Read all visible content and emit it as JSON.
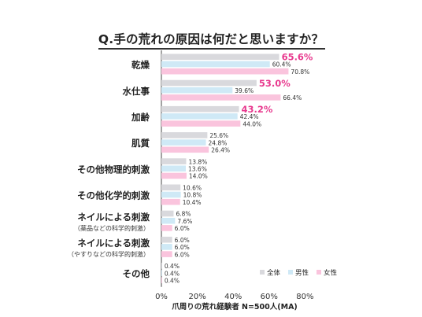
{
  "title": "Q.手の荒れの原因は何だと思いますか？",
  "colors": {
    "all": "#d9d9dd",
    "male": "#cfe9f6",
    "female": "#fac4dd",
    "highlight": "#e8398e",
    "text": "#333333"
  },
  "chart_data": {
    "type": "bar",
    "orientation": "horizontal",
    "title": "Q.手の荒れの原因は何だと思いますか？",
    "xlabel": "爪周りの荒れ経験者 N=500人(MA)",
    "ylabel": "",
    "xlim": [
      0,
      80
    ],
    "xticks": [
      "0%",
      "20%",
      "40%",
      "60%",
      "80%"
    ],
    "grid": false,
    "legend_position": "bottom-right",
    "categories": [
      {
        "label": "乾燥",
        "sub": ""
      },
      {
        "label": "水仕事",
        "sub": ""
      },
      {
        "label": "加齢",
        "sub": ""
      },
      {
        "label": "肌質",
        "sub": ""
      },
      {
        "label": "その他物理的刺激",
        "sub": ""
      },
      {
        "label": "その他化学的刺激",
        "sub": ""
      },
      {
        "label": "ネイルによる刺激",
        "sub": "（薬品などの科学的刺激）"
      },
      {
        "label": "ネイルによる刺激",
        "sub": "（やすりなどの科学的刺激）"
      },
      {
        "label": "その他",
        "sub": ""
      }
    ],
    "series": [
      {
        "name": "全体",
        "key": "all",
        "values": [
          65.6,
          53.0,
          43.2,
          25.6,
          13.8,
          10.6,
          6.8,
          6.0,
          0.4
        ],
        "labels": [
          "65.6%",
          "53.0%",
          "43.2%",
          "25.6%",
          "13.8%",
          "10.6%",
          "6.8%",
          "6.0%",
          "0.4%"
        ]
      },
      {
        "name": "男性",
        "key": "male",
        "values": [
          60.4,
          39.6,
          42.4,
          24.8,
          13.6,
          10.8,
          7.6,
          6.0,
          0.4
        ],
        "labels": [
          "60.4%",
          "39.6%",
          "42.4%",
          "24.8%",
          "13.6%",
          "10.8%",
          "7.6%",
          "6.0%",
          "0.4%"
        ]
      },
      {
        "name": "女性",
        "key": "female",
        "values": [
          70.8,
          66.4,
          44.0,
          26.4,
          14.0,
          10.4,
          6.0,
          6.0,
          0.4
        ],
        "labels": [
          "70.8%",
          "66.4%",
          "44.0%",
          "26.4%",
          "14.0%",
          "10.4%",
          "6.0%",
          "6.0%",
          "0.4%"
        ]
      }
    ],
    "highlighted_top_n": 3
  }
}
